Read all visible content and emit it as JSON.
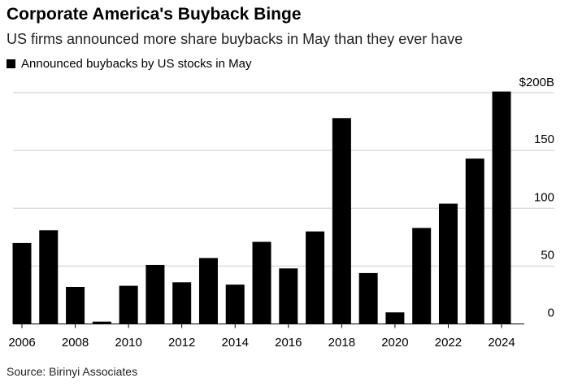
{
  "chart_data": {
    "type": "bar",
    "title": "Corporate America's Buyback Binge",
    "subtitle": "US firms announced more share buybacks in May than they ever have",
    "series": [
      {
        "name": "Announced buybacks by US stocks in May",
        "color": "#000000",
        "values": [
          70,
          81,
          32,
          2,
          33,
          51,
          36,
          57,
          34,
          71,
          48,
          80,
          178,
          44,
          10,
          83,
          104,
          143,
          201
        ]
      }
    ],
    "categories": [
      "2006",
      "2007",
      "2008",
      "2009",
      "2010",
      "2011",
      "2012",
      "2013",
      "2014",
      "2015",
      "2016",
      "2017",
      "2018",
      "2019",
      "2020",
      "2021",
      "2022",
      "2023",
      "2024"
    ],
    "x_tick_labels": [
      "2006",
      "2008",
      "2010",
      "2012",
      "2014",
      "2016",
      "2018",
      "2020",
      "2022",
      "2024"
    ],
    "y_tick_labels": [
      "0",
      "50",
      "100",
      "150",
      "$200B"
    ],
    "y_ticks": [
      0,
      50,
      100,
      150,
      200
    ],
    "ylim": [
      0,
      200
    ],
    "ylabel": "",
    "xlabel": "",
    "grid": true,
    "legend_position": "top-left",
    "y_axis_side": "right",
    "source": "Source: Birinyi Associates"
  }
}
